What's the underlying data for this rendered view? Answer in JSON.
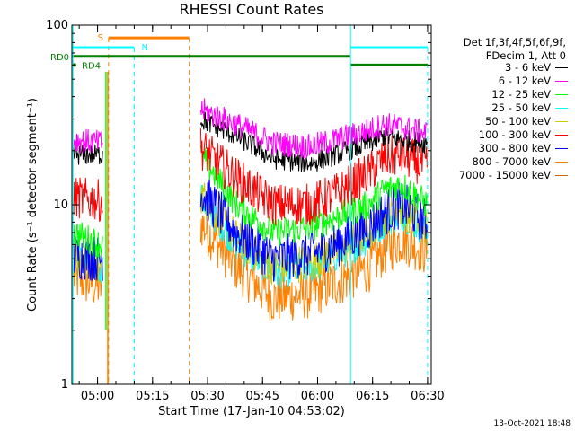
{
  "chart_data": {
    "type": "line",
    "title": "RHESSI Count Rates",
    "xlabel": "Start Time (17-Jan-10 04:53:02)",
    "ylabel": "Count Rate (s⁻¹ detector segment⁻¹)",
    "yscale": "log",
    "ylim": [
      1,
      100
    ],
    "y_ticks": [
      "1",
      "10",
      "100"
    ],
    "xlim_minutes_after_0453": [
      0,
      98
    ],
    "x_ticks": [
      {
        "label": "05:00",
        "t": 7
      },
      {
        "label": "05:15",
        "t": 22
      },
      {
        "label": "05:30",
        "t": 37
      },
      {
        "label": "05:45",
        "t": 52
      },
      {
        "label": "06:00",
        "t": 67
      },
      {
        "label": "06:15",
        "t": 82
      },
      {
        "label": "06:30",
        "t": 97
      }
    ],
    "series": [
      {
        "name": "3 - 6 keV",
        "color": "#000000",
        "values": [
          {
            "t": 0.5,
            "v": 19
          },
          {
            "t": 8,
            "v": 19
          },
          {
            "t": 35,
            "v": 30
          },
          {
            "t": 45,
            "v": 24
          },
          {
            "t": 55,
            "v": 18
          },
          {
            "t": 65,
            "v": 17
          },
          {
            "t": 72,
            "v": 19
          },
          {
            "t": 81,
            "v": 22
          },
          {
            "t": 85,
            "v": 24
          },
          {
            "t": 90,
            "v": 23
          },
          {
            "t": 97,
            "v": 22
          }
        ]
      },
      {
        "name": "6 - 12 keV",
        "color": "#ff00ff",
        "values": [
          {
            "t": 0.5,
            "v": 23
          },
          {
            "t": 8,
            "v": 22
          },
          {
            "t": 35,
            "v": 34
          },
          {
            "t": 45,
            "v": 28
          },
          {
            "t": 55,
            "v": 22
          },
          {
            "t": 65,
            "v": 21
          },
          {
            "t": 72,
            "v": 23
          },
          {
            "t": 81,
            "v": 26
          },
          {
            "t": 85,
            "v": 28
          },
          {
            "t": 90,
            "v": 27
          },
          {
            "t": 97,
            "v": 25
          }
        ]
      },
      {
        "name": "12 - 25 keV",
        "color": "#00ff00",
        "values": [
          {
            "t": 0.5,
            "v": 7
          },
          {
            "t": 8,
            "v": 6
          },
          {
            "t": 35,
            "v": 19
          },
          {
            "t": 45,
            "v": 10
          },
          {
            "t": 55,
            "v": 7
          },
          {
            "t": 65,
            "v": 7.5
          },
          {
            "t": 72,
            "v": 8.5
          },
          {
            "t": 81,
            "v": 10
          },
          {
            "t": 85,
            "v": 12
          },
          {
            "t": 90,
            "v": 13
          },
          {
            "t": 97,
            "v": 10
          }
        ]
      },
      {
        "name": "25 - 50 keV",
        "color": "#00ffff",
        "values": [
          {
            "t": 0.5,
            "v": 5
          },
          {
            "t": 8,
            "v": 4.5
          },
          {
            "t": 35,
            "v": 11
          },
          {
            "t": 45,
            "v": 6
          },
          {
            "t": 55,
            "v": 4.2
          },
          {
            "t": 65,
            "v": 4.5
          },
          {
            "t": 72,
            "v": 5.2
          },
          {
            "t": 81,
            "v": 6.5
          },
          {
            "t": 85,
            "v": 8
          },
          {
            "t": 90,
            "v": 9
          },
          {
            "t": 97,
            "v": 7
          }
        ]
      },
      {
        "name": "50 - 100 keV",
        "color": "#cccc00",
        "values": [
          {
            "t": 0.5,
            "v": 5
          },
          {
            "t": 8,
            "v": 4.6
          },
          {
            "t": 35,
            "v": 11.5
          },
          {
            "t": 45,
            "v": 6.5
          },
          {
            "t": 55,
            "v": 4.5
          },
          {
            "t": 65,
            "v": 4.8
          },
          {
            "t": 72,
            "v": 5.5
          },
          {
            "t": 81,
            "v": 7
          },
          {
            "t": 85,
            "v": 8.5
          },
          {
            "t": 90,
            "v": 9.5
          },
          {
            "t": 97,
            "v": 7.5
          }
        ]
      },
      {
        "name": "100 - 300 keV",
        "color": "#ff0000",
        "values": [
          {
            "t": 0.5,
            "v": 11
          },
          {
            "t": 8,
            "v": 10.5
          },
          {
            "t": 35,
            "v": 21
          },
          {
            "t": 45,
            "v": 14
          },
          {
            "t": 55,
            "v": 10
          },
          {
            "t": 65,
            "v": 10
          },
          {
            "t": 72,
            "v": 11.5
          },
          {
            "t": 81,
            "v": 15
          },
          {
            "t": 85,
            "v": 18
          },
          {
            "t": 90,
            "v": 19
          },
          {
            "t": 97,
            "v": 16
          }
        ]
      },
      {
        "name": "300 - 800 keV",
        "color": "#0000ff",
        "values": [
          {
            "t": 0.5,
            "v": 5.2
          },
          {
            "t": 8,
            "v": 5
          },
          {
            "t": 35,
            "v": 12
          },
          {
            "t": 45,
            "v": 7
          },
          {
            "t": 55,
            "v": 5
          },
          {
            "t": 65,
            "v": 5.3
          },
          {
            "t": 72,
            "v": 6
          },
          {
            "t": 81,
            "v": 7.5
          },
          {
            "t": 85,
            "v": 9
          },
          {
            "t": 90,
            "v": 10
          },
          {
            "t": 97,
            "v": 8
          }
        ]
      },
      {
        "name": "800 - 7000 keV",
        "color": "#ff8000",
        "values": [
          {
            "t": 0.5,
            "v": 4
          },
          {
            "t": 8,
            "v": 3.5
          },
          {
            "t": 35,
            "v": 8
          },
          {
            "t": 45,
            "v": 4.5
          },
          {
            "t": 55,
            "v": 3
          },
          {
            "t": 65,
            "v": 3.2
          },
          {
            "t": 72,
            "v": 3.7
          },
          {
            "t": 81,
            "v": 4.5
          },
          {
            "t": 85,
            "v": 5.5
          },
          {
            "t": 90,
            "v": 6.5
          },
          {
            "t": 97,
            "v": 5.5
          }
        ]
      },
      {
        "name": "7000 - 15000 keV",
        "color": "#cc6600",
        "values": []
      }
    ],
    "attenuator_segments": [
      {
        "label": "S",
        "color": "#ff8000",
        "t_start": 10,
        "t_end": 32,
        "v": 85,
        "dashed_ends": [
          10,
          32
        ]
      },
      {
        "label": "N",
        "color": "#00ffff",
        "t_start": 0,
        "t_end": 17,
        "v": 75,
        "dashed_ends": [
          17
        ]
      },
      {
        "label": "N",
        "color": "#00ffff",
        "t_start": 76,
        "t_end": 97,
        "v": 75,
        "dashed_ends": [
          97
        ]
      },
      {
        "label": "RD0",
        "color": "#008000",
        "t_start": 0,
        "t_end": 76,
        "v": 67
      },
      {
        "label": "RD4",
        "color": "#008000",
        "t_start": 76,
        "t_end": 97,
        "v": 60
      }
    ],
    "legend_header": [
      "Det 1f,3f,4f,5f,6f,9f,",
      "FDecim 1, Att 0"
    ],
    "legend_position": "right"
  },
  "timestamp": "13-Oct-2021 18:48"
}
